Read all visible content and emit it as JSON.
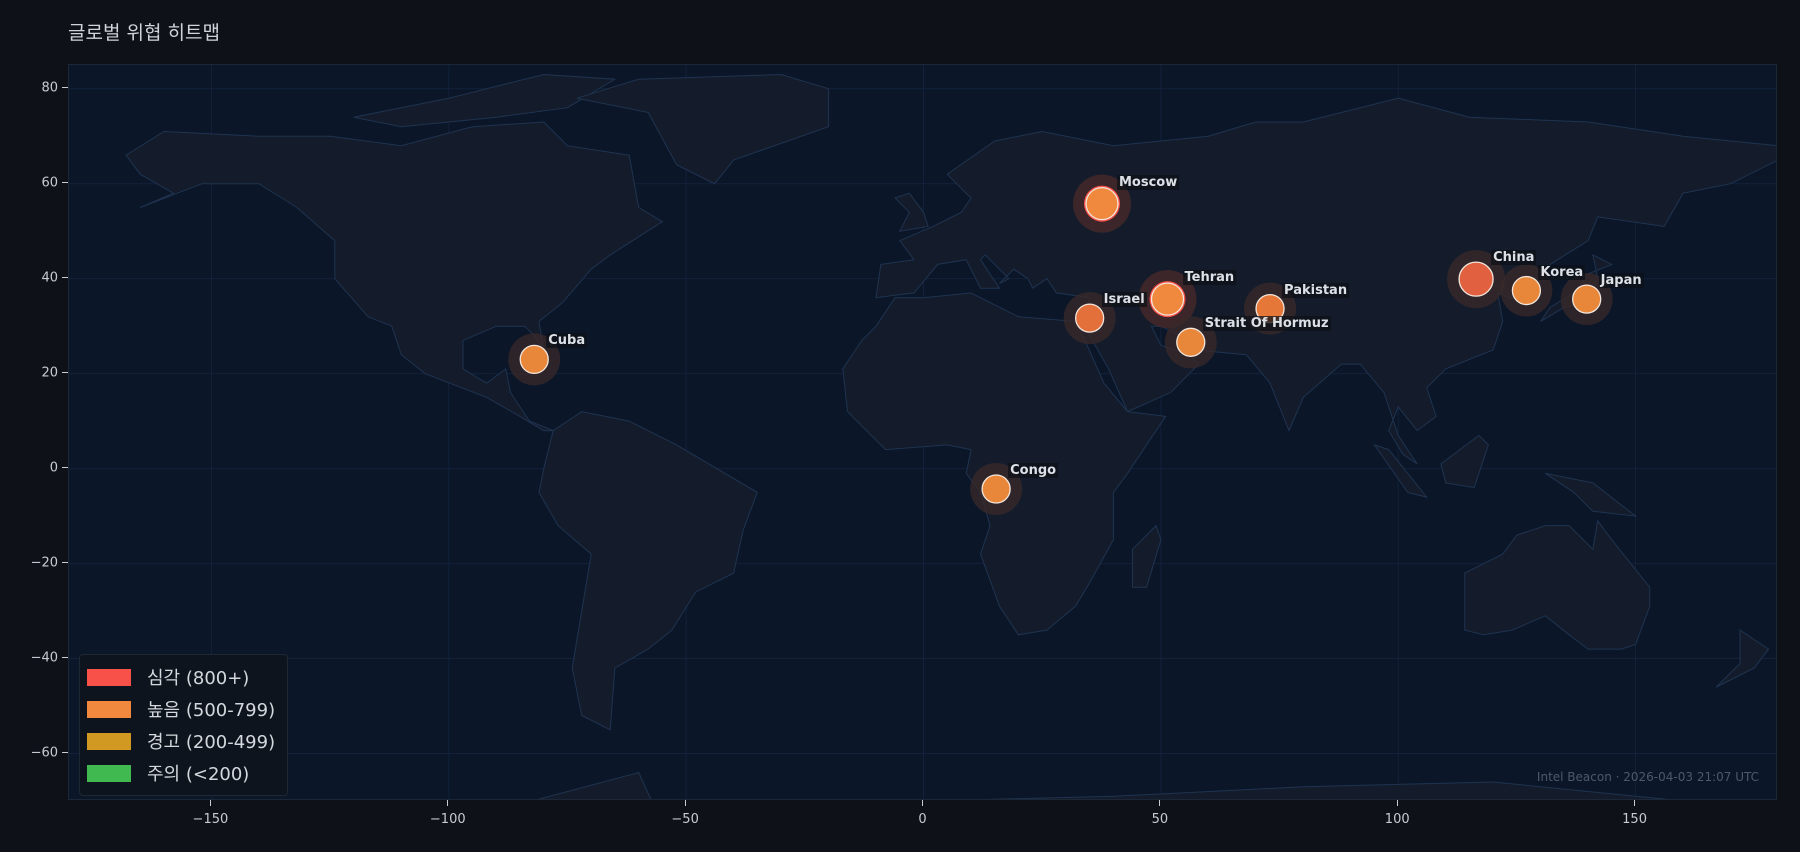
{
  "title": "글로벌 위협 히트맵",
  "watermark": "Intel Beacon · 2026-04-03 21:07 UTC",
  "axes": {
    "xlim": [
      -180,
      180
    ],
    "ylim": [
      -70,
      85
    ],
    "x_ticks": [
      "−150",
      "−100",
      "−50",
      "0",
      "50",
      "100",
      "150"
    ],
    "x_tick_values": [
      -150,
      -100,
      -50,
      0,
      50,
      100,
      150
    ],
    "y_ticks": [
      "80",
      "60",
      "40",
      "20",
      "0",
      "−20",
      "−40",
      "−60"
    ],
    "y_tick_values": [
      80,
      60,
      40,
      20,
      0,
      -20,
      -40,
      -60
    ],
    "grid": true
  },
  "colors": {
    "background": "#0e1118",
    "ocean": "#0b1628",
    "land": "#141c2b",
    "border": "#1f3350"
  },
  "legend": {
    "placement": "lower-left",
    "items": [
      {
        "label": "심각 (800+)",
        "color": "#f85149"
      },
      {
        "label": "높음 (500-799)",
        "color": "#f0883e"
      },
      {
        "label": "경고 (200-499)",
        "color": "#d29922"
      },
      {
        "label": "주의 (<200)",
        "color": "#3fb950"
      }
    ]
  },
  "markers": [
    {
      "label": "Moscow",
      "lon": 37.6,
      "lat": 55.8,
      "color": "#f0883e",
      "critical_ring": true,
      "size": "large"
    },
    {
      "label": "Tehran",
      "lon": 51.4,
      "lat": 35.7,
      "color": "#f0883e",
      "critical_ring": true,
      "size": "large"
    },
    {
      "label": "Israel",
      "lon": 35.0,
      "lat": 31.7,
      "color": "#e36f3a",
      "critical_ring": false,
      "size": "medium"
    },
    {
      "label": "Strait Of Hormuz",
      "lon": 56.3,
      "lat": 26.6,
      "color": "#e8863a",
      "critical_ring": false,
      "size": "medium"
    },
    {
      "label": "Pakistan",
      "lon": 73.0,
      "lat": 33.7,
      "color": "#e57838",
      "critical_ring": false,
      "size": "medium"
    },
    {
      "label": "China",
      "lon": 116.4,
      "lat": 39.9,
      "color": "#e0603f",
      "critical_ring": false,
      "size": "large"
    },
    {
      "label": "Korea",
      "lon": 127.0,
      "lat": 37.5,
      "color": "#e8863a",
      "critical_ring": false,
      "size": "medium"
    },
    {
      "label": "Japan",
      "lon": 139.7,
      "lat": 35.7,
      "color": "#e8863a",
      "critical_ring": false,
      "size": "medium"
    },
    {
      "label": "Cuba",
      "lon": -82.0,
      "lat": 23.0,
      "color": "#e8863a",
      "critical_ring": false,
      "size": "medium"
    },
    {
      "label": "Congo",
      "lon": 15.3,
      "lat": -4.3,
      "color": "#e8863a",
      "critical_ring": false,
      "size": "medium"
    }
  ]
}
